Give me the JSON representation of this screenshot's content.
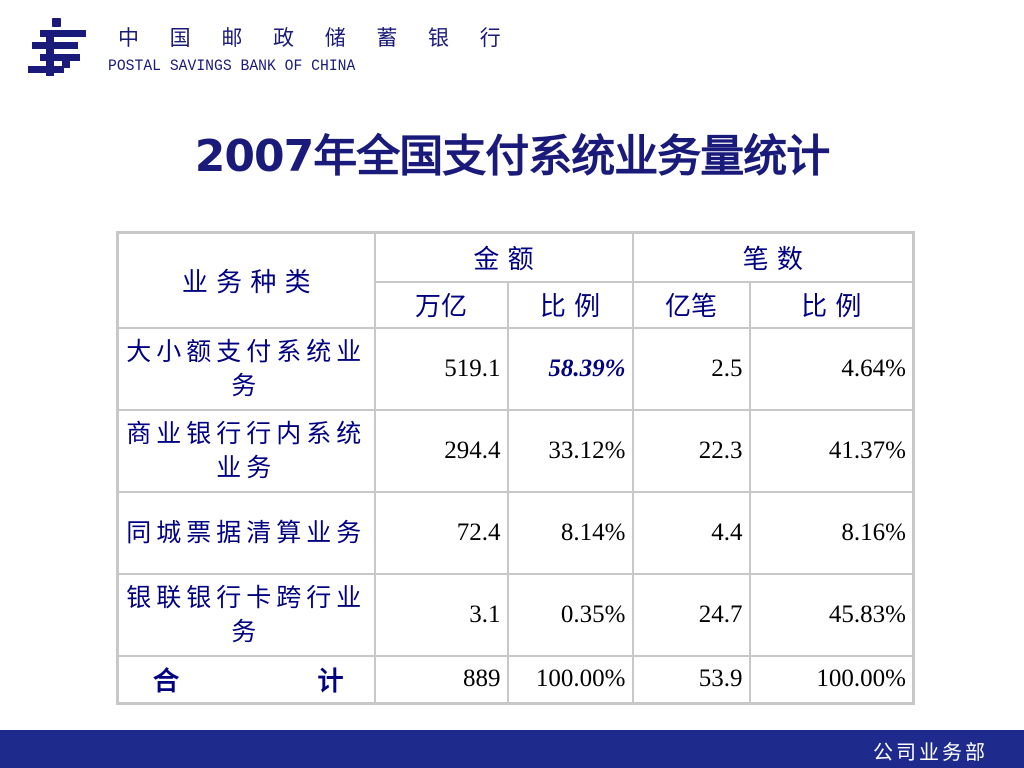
{
  "header": {
    "bank_name_cn": "中 国 邮 政 储 蓄 银 行",
    "bank_name_en": "POSTAL SAVINGS BANK OF CHINA",
    "logo_icon": "postal-savings-logo-icon",
    "brand_color": "#1a1a7a"
  },
  "title": "2007年全国支付系统业务量统计",
  "table": {
    "headers": {
      "category": "业 务 种 类",
      "amount_group": "金    额",
      "count_group": "笔    数",
      "amount_unit": "万亿",
      "amount_ratio": "比  例",
      "count_unit": "亿笔",
      "count_ratio": "比  例"
    },
    "rows": [
      {
        "category": "大小额支付系统业务",
        "amount": "519.1",
        "amount_ratio": "58.39%",
        "count": "2.5",
        "count_ratio": "4.64%"
      },
      {
        "category": "商业银行行内系统业务",
        "amount": "294.4",
        "amount_ratio": "33.12%",
        "count": "22.3",
        "count_ratio": "41.37%"
      },
      {
        "category": "同城票据清算业务",
        "amount": "72.4",
        "amount_ratio": "8.14%",
        "count": "4.4",
        "count_ratio": "8.16%"
      },
      {
        "category": "银联银行卡跨行业务",
        "amount": "3.1",
        "amount_ratio": "0.35%",
        "count": "24.7",
        "count_ratio": "45.83%"
      }
    ],
    "total": {
      "label_first": "合",
      "label_last": "计",
      "amount": "889",
      "amount_ratio": "100.00%",
      "count": "53.9",
      "count_ratio": "100.00%"
    }
  },
  "footer": {
    "department": "公司业务部",
    "bar_color": "#1e2b8c"
  }
}
